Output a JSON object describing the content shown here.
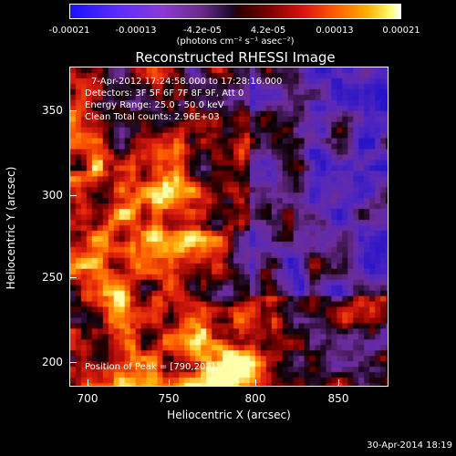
{
  "colorbar": {
    "ticks": [
      "-0.00021",
      "-0.00013",
      "-4.2e-05",
      "4.2e-05",
      "0.00013",
      "0.00021"
    ],
    "units": "(photons cm⁻² s⁻¹ asec⁻²)"
  },
  "plot": {
    "title": "Reconstructed RHESSI Image",
    "xlabel": "Heliocentric X (arcsec)",
    "ylabel": "Heliocentric Y (arcsec)",
    "x_ticks": [
      "700",
      "750",
      "800",
      "850"
    ],
    "y_ticks": [
      "350",
      "300",
      "250",
      "200"
    ],
    "info_lines": [
      "7-Apr-2012 17:24:58.000 to 17:28:16.000",
      "Detectors: 3F 5F 6F 7F 8F 9F, Att 0",
      "Energy Range: 25.0 - 50.0 keV",
      "Clean     Total counts: 2.96E+03"
    ],
    "peak_label": "Position of Peak = [790,202]"
  },
  "timestamp": "30-Apr-2014 18:19"
}
